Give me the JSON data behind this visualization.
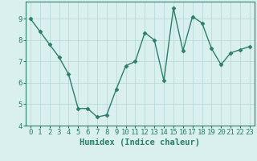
{
  "x": [
    0,
    1,
    2,
    3,
    4,
    5,
    6,
    7,
    8,
    9,
    10,
    11,
    12,
    13,
    14,
    15,
    16,
    17,
    18,
    19,
    20,
    21,
    22,
    23
  ],
  "y": [
    9.0,
    8.4,
    7.8,
    7.2,
    6.4,
    4.8,
    4.8,
    4.4,
    4.5,
    5.7,
    6.8,
    7.0,
    8.35,
    8.0,
    6.1,
    9.5,
    7.5,
    9.1,
    8.8,
    7.6,
    6.85,
    7.4,
    7.55,
    7.7
  ],
  "line_color": "#2e7d6e",
  "marker": "D",
  "marker_size": 2.5,
  "bg_color": "#d9f0ee",
  "grid_color": "#b8dbd7",
  "xlabel": "Humidex (Indice chaleur)",
  "ylabel": "",
  "xlim": [
    -0.5,
    23.5
  ],
  "ylim": [
    4.0,
    9.8
  ],
  "yticks": [
    4,
    5,
    6,
    7,
    8,
    9
  ],
  "xtick_labels": [
    "0",
    "1",
    "2",
    "3",
    "4",
    "5",
    "6",
    "7",
    "8",
    "9",
    "10",
    "11",
    "12",
    "13",
    "14",
    "15",
    "16",
    "17",
    "18",
    "19",
    "20",
    "21",
    "22",
    "23"
  ],
  "xlabel_fontsize": 7.5,
  "tick_fontsize": 6.5,
  "linewidth": 1.0
}
